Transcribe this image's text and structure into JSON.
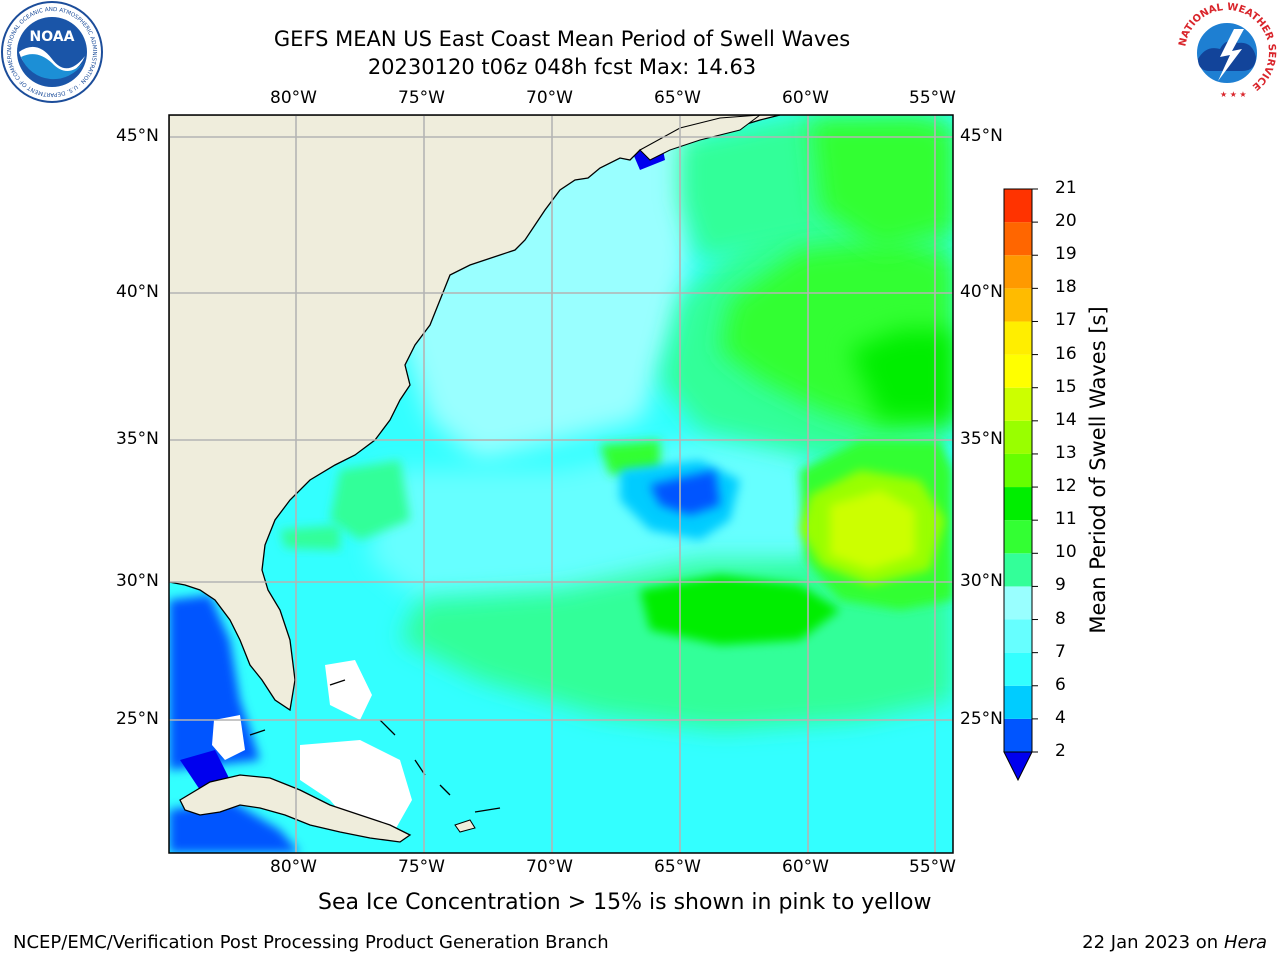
{
  "title": "GEFS MEAN US East Coast Mean Period of Swell Waves",
  "subtitle": "20230120 t06z 048h fcst   Max: 14.63",
  "lon_labels": [
    "80°W",
    "75°W",
    "70°W",
    "65°W",
    "60°W",
    "55°W"
  ],
  "lat_labels": [
    "45°N",
    "40°N",
    "35°N",
    "30°N",
    "25°N"
  ],
  "colorbar": {
    "label": "Mean Period of Swell Waves [s]",
    "ticks": [
      "2",
      "4",
      "6",
      "7",
      "8",
      "9",
      "10",
      "11",
      "12",
      "13",
      "14",
      "15",
      "16",
      "17",
      "18",
      "19",
      "20",
      "21"
    ],
    "colors": [
      "#0055ff",
      "#00ccff",
      "#33ffff",
      "#66ffff",
      "#99ffff",
      "#33ff99",
      "#33ff33",
      "#00ee00",
      "#66ff00",
      "#99ff00",
      "#ccff00",
      "#ffff00",
      "#ffee00",
      "#ffbb00",
      "#ff9900",
      "#ff6600",
      "#ff3300",
      "#ff0000"
    ],
    "under_color": "#0000ee"
  },
  "ice_note": "Sea Ice Concentration > 15% is shown in pink to yellow",
  "footer_left": "NCEP/EMC/Verification Post Processing Product Generation Branch",
  "footer_date": "22 Jan 2023 on",
  "footer_host": "Hera",
  "noaa_logo": {
    "text": "NOAA",
    "ring_text": "NATIONAL OCEANIC AND ATMOSPHERIC ADMINISTRATION · U.S. DEPARTMENT OF COMMERCE ·"
  },
  "nws_logo": {
    "ring_text": "NATIONAL WEATHER SERVICE"
  },
  "colors": {
    "land": "#efeddc",
    "ocean_base": "#33ffff",
    "grid": "#b4b4b4"
  }
}
